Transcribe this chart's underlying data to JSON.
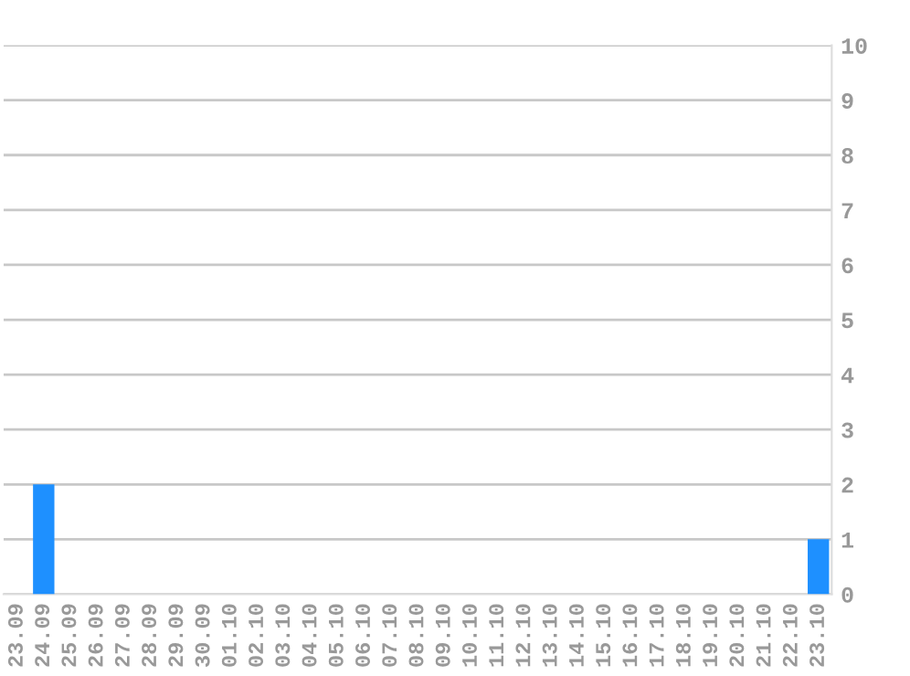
{
  "chart_data": {
    "type": "bar",
    "categories": [
      "23.09",
      "24.09",
      "25.09",
      "26.09",
      "27.09",
      "28.09",
      "29.09",
      "30.09",
      "01.10",
      "02.10",
      "03.10",
      "04.10",
      "05.10",
      "06.10",
      "07.10",
      "08.10",
      "09.10",
      "10.10",
      "11.10",
      "12.10",
      "13.10",
      "14.10",
      "15.10",
      "16.10",
      "17.10",
      "18.10",
      "19.10",
      "20.10",
      "21.10",
      "22.10",
      "23.10"
    ],
    "values": [
      0,
      2,
      0,
      0,
      0,
      0,
      0,
      0,
      0,
      0,
      0,
      0,
      0,
      0,
      0,
      0,
      0,
      0,
      0,
      0,
      0,
      0,
      0,
      0,
      0,
      0,
      0,
      0,
      0,
      0,
      1
    ],
    "color": "#1e90ff",
    "ylim": [
      0,
      10
    ],
    "yticks": [
      0,
      1,
      2,
      3,
      4,
      5,
      6,
      7,
      8,
      9,
      10
    ],
    "grid": "y"
  }
}
